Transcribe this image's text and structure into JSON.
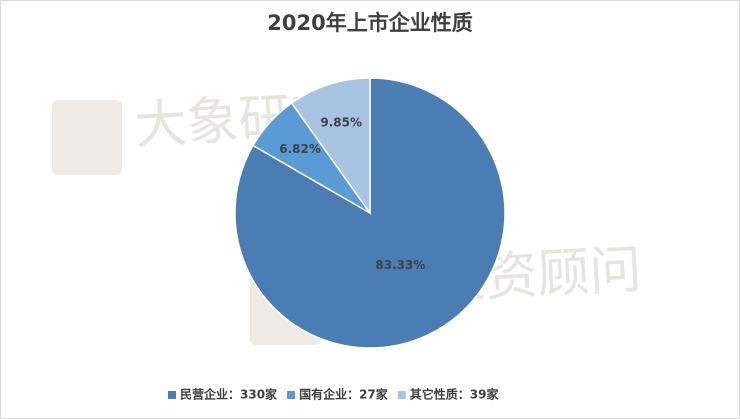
{
  "chart_data": {
    "type": "pie",
    "title": "2020年上市企业性质",
    "categories": [
      "民营企业：330家",
      "国有企业：27家",
      "其它性质：39家"
    ],
    "values": [
      83.33,
      6.82,
      9.85
    ],
    "value_labels": [
      "83.33%",
      "6.82%",
      "9.85%"
    ],
    "colors": [
      "#4a7db4",
      "#5b9bd5",
      "#a9c4e3"
    ],
    "legend": "bottom",
    "watermarks": [
      "大象研究院",
      "大象投资顾问"
    ]
  }
}
